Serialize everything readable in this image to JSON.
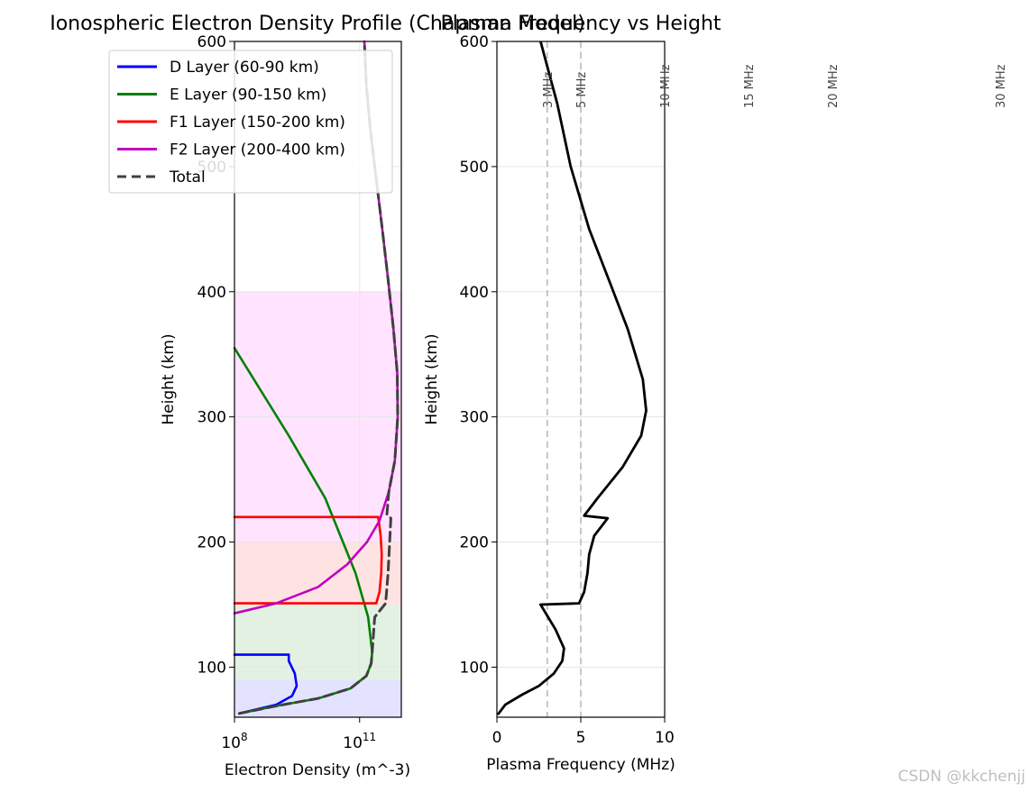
{
  "chart_data": [
    {
      "type": "line",
      "title": "Ionospheric Electron Density Profile (Chapman Model)",
      "xlabel": "Electron Density (m^-3)",
      "ylabel": "Height (km)",
      "xscale": "log",
      "xlim": [
        100000000.0,
        1000000000000.0
      ],
      "ylim": [
        60,
        600
      ],
      "xticks": [
        {
          "value": 100000000.0,
          "base": "10",
          "exp": "8"
        },
        {
          "value": 100000000000.0,
          "base": "10",
          "exp": "11"
        }
      ],
      "yticks": [
        100,
        200,
        300,
        400,
        500,
        600
      ],
      "grid": true,
      "legend_position": "upper-left",
      "bands": [
        {
          "name": "D",
          "range": [
            60,
            90
          ],
          "color": "#0000ff"
        },
        {
          "name": "E",
          "range": [
            90,
            150
          ],
          "color": "#008000"
        },
        {
          "name": "F1",
          "range": [
            150,
            200
          ],
          "color": "#ff0000"
        },
        {
          "name": "F2",
          "range": [
            200,
            400
          ],
          "color": "#ff00ff"
        }
      ],
      "series": [
        {
          "name": "D Layer (60-90 km)",
          "color": "#0000ff",
          "style": "solid",
          "x": [
            130000000.0,
            1000000000.0,
            2400000000.0,
            3100000000.0,
            2800000000.0,
            2000000000.0,
            2000000000.0,
            100000000.0
          ],
          "y": [
            63,
            70,
            77,
            85,
            95,
            105,
            110,
            110
          ]
        },
        {
          "name": "E Layer (90-150 km)",
          "color": "#008000",
          "style": "solid",
          "x": [
            130000000.0,
            1000000000.0,
            10000000000.0,
            60000000000.0,
            145000000000.0,
            190000000000.0,
            200000000000.0,
            160000000000.0,
            80000000000.0,
            15000000000.0,
            2000000000.0,
            100000000.0
          ],
          "y": [
            63,
            69,
            75,
            83,
            93,
            103,
            112,
            140,
            175,
            235,
            285,
            355
          ]
        },
        {
          "name": "F1 Layer (150-200 km)",
          "color": "#ff0000",
          "style": "solid",
          "x": [
            100000000.0,
            250000000000.0,
            300000000000.0,
            330000000000.0,
            340000000000.0,
            320000000000.0,
            280000000000.0,
            100000000.0
          ],
          "y": [
            151,
            151,
            160,
            175,
            190,
            205,
            220,
            220
          ]
        },
        {
          "name": "F2 Layer (200-400 km)",
          "color": "#c000c0",
          "style": "solid",
          "x": [
            100000000.0,
            1000000000.0,
            10000000000.0,
            50000000000.0,
            150000000000.0,
            300000000000.0,
            500000000000.0,
            700000000000.0,
            820000000000.0,
            800000000000.0,
            650000000000.0,
            480000000000.0,
            350000000000.0,
            250000000000.0,
            180000000000.0,
            145000000000.0,
            130000000000.0
          ],
          "y": [
            143,
            151,
            164,
            182,
            200,
            217,
            240,
            265,
            300,
            335,
            370,
            410,
            450,
            490,
            530,
            565,
            600
          ]
        },
        {
          "name": "Total",
          "color": "#404040",
          "style": "dashed",
          "x": [
            130000000.0,
            1000000000.0,
            10000000000.0,
            60000000000.0,
            145000000000.0,
            190000000000.0,
            200000000000.0,
            230000000000.0,
            420000000000.0,
            480000000000.0,
            560000000000.0,
            450000000000.0,
            500000000000.0,
            700000000000.0,
            820000000000.0,
            800000000000.0,
            650000000000.0,
            480000000000.0,
            350000000000.0,
            250000000000.0,
            180000000000.0,
            145000000000.0,
            130000000000.0
          ],
          "y": [
            63,
            69,
            75,
            83,
            93,
            103,
            112,
            140,
            151,
            175,
            219,
            222,
            240,
            265,
            300,
            335,
            370,
            410,
            450,
            490,
            530,
            565,
            600
          ]
        }
      ]
    },
    {
      "type": "line",
      "title": "Plasma Frequency vs Height",
      "xlabel": "Plasma Frequency (MHz)",
      "ylabel": "Height (km)",
      "xlim": [
        0,
        10
      ],
      "ylim": [
        60,
        600
      ],
      "xticks": [
        0,
        5,
        10
      ],
      "yticks": [
        100,
        200,
        300,
        400,
        500,
        600
      ],
      "grid": true,
      "series": [
        {
          "name": "Plasma frequency",
          "color": "#000000",
          "x": [
            0.05,
            0.5,
            1.5,
            2.5,
            3.4,
            3.9,
            4.0,
            3.5,
            2.6,
            4.9,
            5.2,
            5.4,
            5.5,
            5.8,
            6.6,
            5.2,
            6.0,
            7.5,
            8.6,
            8.9,
            8.7,
            7.8,
            6.8,
            5.5,
            4.4,
            3.6,
            2.6
          ],
          "y": [
            62,
            70,
            78,
            85,
            95,
            105,
            115,
            130,
            150,
            151,
            160,
            175,
            190,
            205,
            219,
            221,
            235,
            260,
            285,
            305,
            330,
            370,
            405,
            450,
            500,
            550,
            600
          ]
        }
      ],
      "reference_lines": [
        {
          "x": 3,
          "label": "3 MHz"
        },
        {
          "x": 5,
          "label": "5 MHz"
        }
      ],
      "frequency_markers": [
        {
          "x": 10,
          "label": "10 MHz"
        },
        {
          "x": 15,
          "label": "15 MHz"
        },
        {
          "x": 20,
          "label": "20 MHz"
        },
        {
          "x": 30,
          "label": "30 MHz"
        }
      ]
    }
  ],
  "watermark": "CSDN @kkchenjj"
}
